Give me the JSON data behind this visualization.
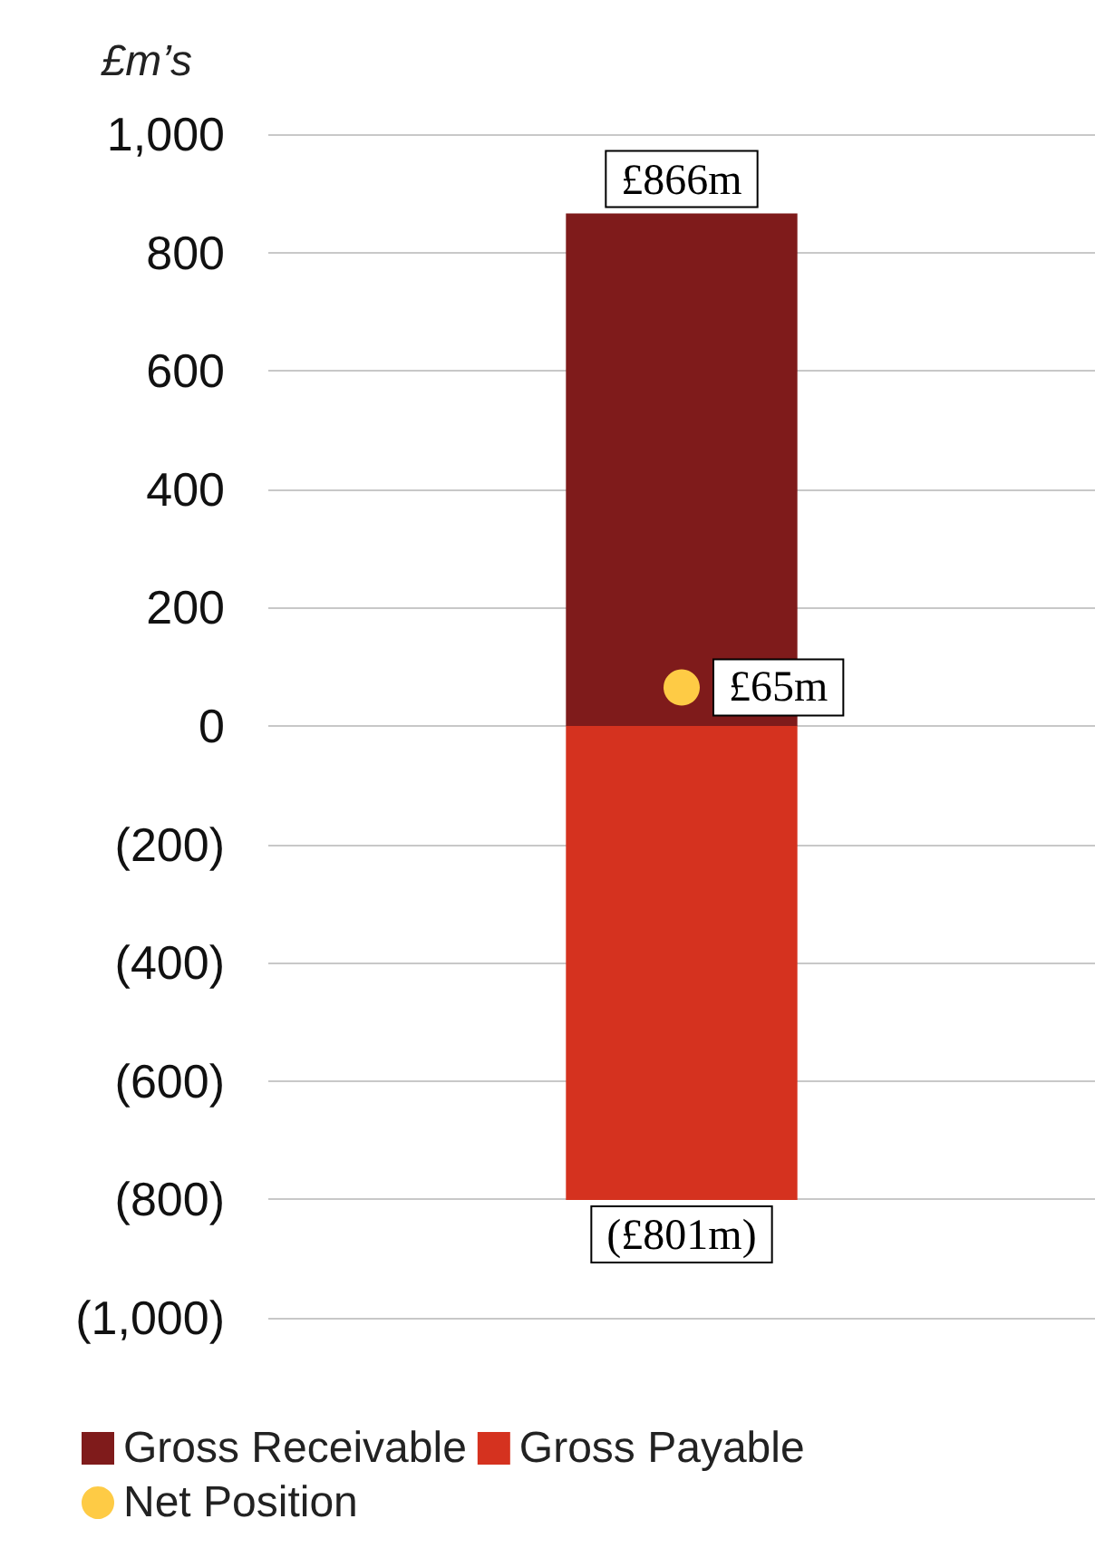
{
  "chart_data": {
    "type": "bar",
    "stacked": true,
    "ylabel": "£m’s",
    "categories": [
      null
    ],
    "series": [
      {
        "name": "Gross Receivable",
        "color": "#7f1b1b",
        "values": [
          866
        ],
        "value_labels": [
          "£866m"
        ]
      },
      {
        "name": "Gross Payable",
        "color": "#d5321f",
        "values": [
          -801
        ],
        "value_labels": [
          "(£801m)"
        ]
      },
      {
        "name": "Net Position",
        "type": "scatter",
        "color": "#fecb45",
        "x": [
          null
        ],
        "values": [
          65
        ],
        "value_labels": [
          "£65m"
        ]
      }
    ],
    "ylim": [
      -1000,
      1000
    ],
    "yticks": [
      {
        "value": -1000,
        "label": "(1,000)"
      },
      {
        "value": -800,
        "label": "(800)"
      },
      {
        "value": -600,
        "label": "(600)"
      },
      {
        "value": -400,
        "label": "(400)"
      },
      {
        "value": -200,
        "label": "(200)"
      },
      0,
      200,
      400,
      600,
      800,
      {
        "value": 1000,
        "label": "1,000"
      }
    ],
    "grid": "y",
    "legend": "bottom",
    "marker": "circle"
  }
}
